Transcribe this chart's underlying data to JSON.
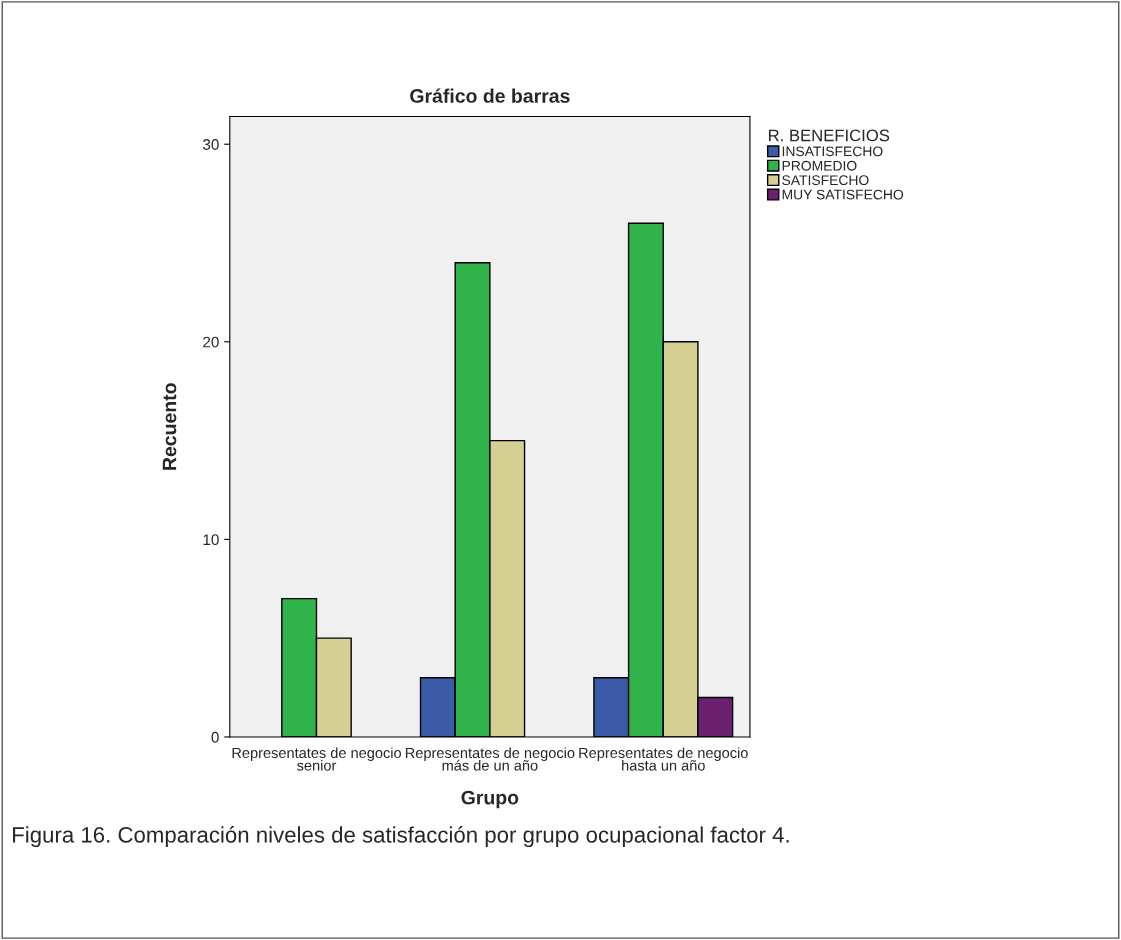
{
  "chart_data": {
    "type": "bar",
    "title": "Gráfico de barras",
    "xlabel": "Grupo",
    "ylabel": "Recuento",
    "legend_title": "R. BENEFICIOS",
    "categories": [
      "Representates de negocio\nsenior",
      "Representates de negocio\nmás de un año",
      "Representates de negocio\nhasta un año"
    ],
    "series": [
      {
        "name": "INSATISFECHO",
        "color": "#3a5ba8",
        "values": [
          null,
          3,
          3
        ]
      },
      {
        "name": "PROMEDIO",
        "color": "#2fb34a",
        "values": [
          7,
          24,
          26
        ]
      },
      {
        "name": "SATISFECHO",
        "color": "#d6cf93",
        "values": [
          5,
          15,
          20
        ]
      },
      {
        "name": "MUY SATISFECHO",
        "color": "#6b2070",
        "values": [
          null,
          null,
          2
        ]
      }
    ],
    "ylim": [
      0,
      31.4
    ],
    "yticks": [
      0,
      10,
      20,
      30
    ],
    "grid": false,
    "legend": "top right",
    "annotations": [
      "Figura 16. Comparación niveles de satisfacción por grupo ocupacional factor 4."
    ]
  }
}
